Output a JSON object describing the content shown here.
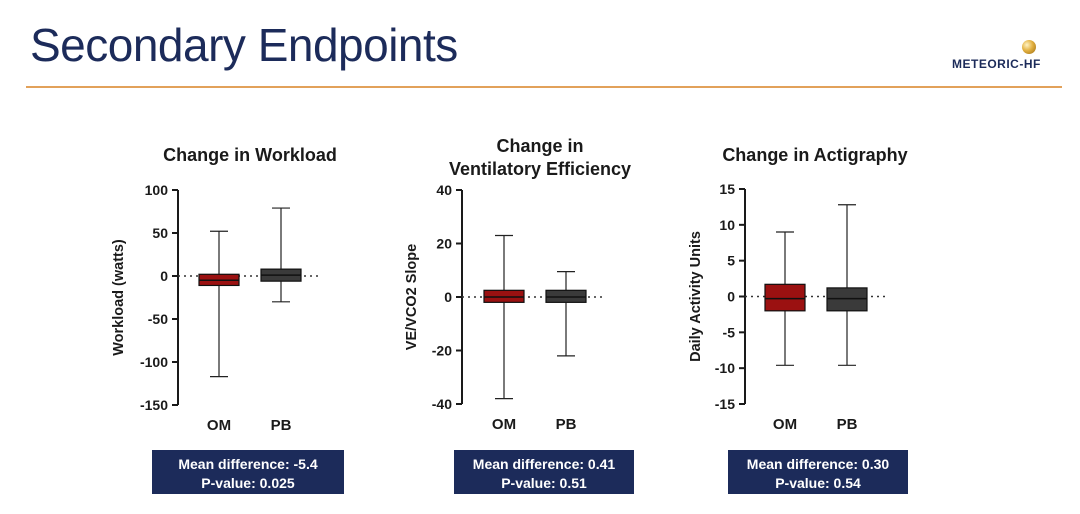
{
  "slide": {
    "title": "Secondary Endpoints",
    "logo_text": "METEORIC-HF"
  },
  "colors": {
    "om": "#9b1111",
    "pb": "#3a3a3a",
    "title": "#1c2b5a",
    "rule": "#e2a15a",
    "box": "#1c2b5a"
  },
  "chart_data": [
    {
      "type": "box",
      "title": [
        "Change in Workload"
      ],
      "ylabel": "Workload (watts)",
      "ylim": [
        -150,
        100
      ],
      "yticks": [
        100,
        50,
        0,
        -50,
        -100,
        -150
      ],
      "categories": [
        "OM",
        "PB"
      ],
      "boxes": [
        {
          "name": "OM",
          "min": -117,
          "q1": -11,
          "median": -5,
          "q3": 2,
          "max": 52
        },
        {
          "name": "PB",
          "min": -30,
          "q1": -6,
          "median": 1,
          "q3": 8,
          "max": 79
        }
      ],
      "reference_line": 0,
      "stats": {
        "mean_difference": "Mean difference: -5.4",
        "p_value": "P-value: 0.025"
      }
    },
    {
      "type": "box",
      "title": [
        "Change in",
        "Ventilatory Efficiency"
      ],
      "ylabel": "VE/VCO2 Slope",
      "ylim": [
        -40,
        40
      ],
      "yticks": [
        40,
        20,
        0,
        -20,
        -40
      ],
      "categories": [
        "OM",
        "PB"
      ],
      "boxes": [
        {
          "name": "OM",
          "min": -38,
          "q1": -2,
          "median": 0,
          "q3": 2.5,
          "max": 23
        },
        {
          "name": "PB",
          "min": -22,
          "q1": -2,
          "median": 0,
          "q3": 2.5,
          "max": 9.5
        }
      ],
      "reference_line": 0,
      "stats": {
        "mean_difference": "Mean difference: 0.41",
        "p_value": "P-value: 0.51"
      }
    },
    {
      "type": "box",
      "title": [
        "Change in Actigraphy"
      ],
      "ylabel": "Daily Activity Units",
      "ylim": [
        -15,
        15
      ],
      "yticks": [
        15,
        10,
        5,
        0,
        -5,
        -10,
        -15
      ],
      "categories": [
        "OM",
        "PB"
      ],
      "boxes": [
        {
          "name": "OM",
          "min": -9.6,
          "q1": -2,
          "median": -0.3,
          "q3": 1.7,
          "max": 9
        },
        {
          "name": "PB",
          "min": -9.6,
          "q1": -2,
          "median": -0.3,
          "q3": 1.2,
          "max": 12.8
        }
      ],
      "reference_line": 0,
      "stats": {
        "mean_difference": "Mean difference: 0.30",
        "p_value": "P-value: 0.54"
      }
    }
  ]
}
